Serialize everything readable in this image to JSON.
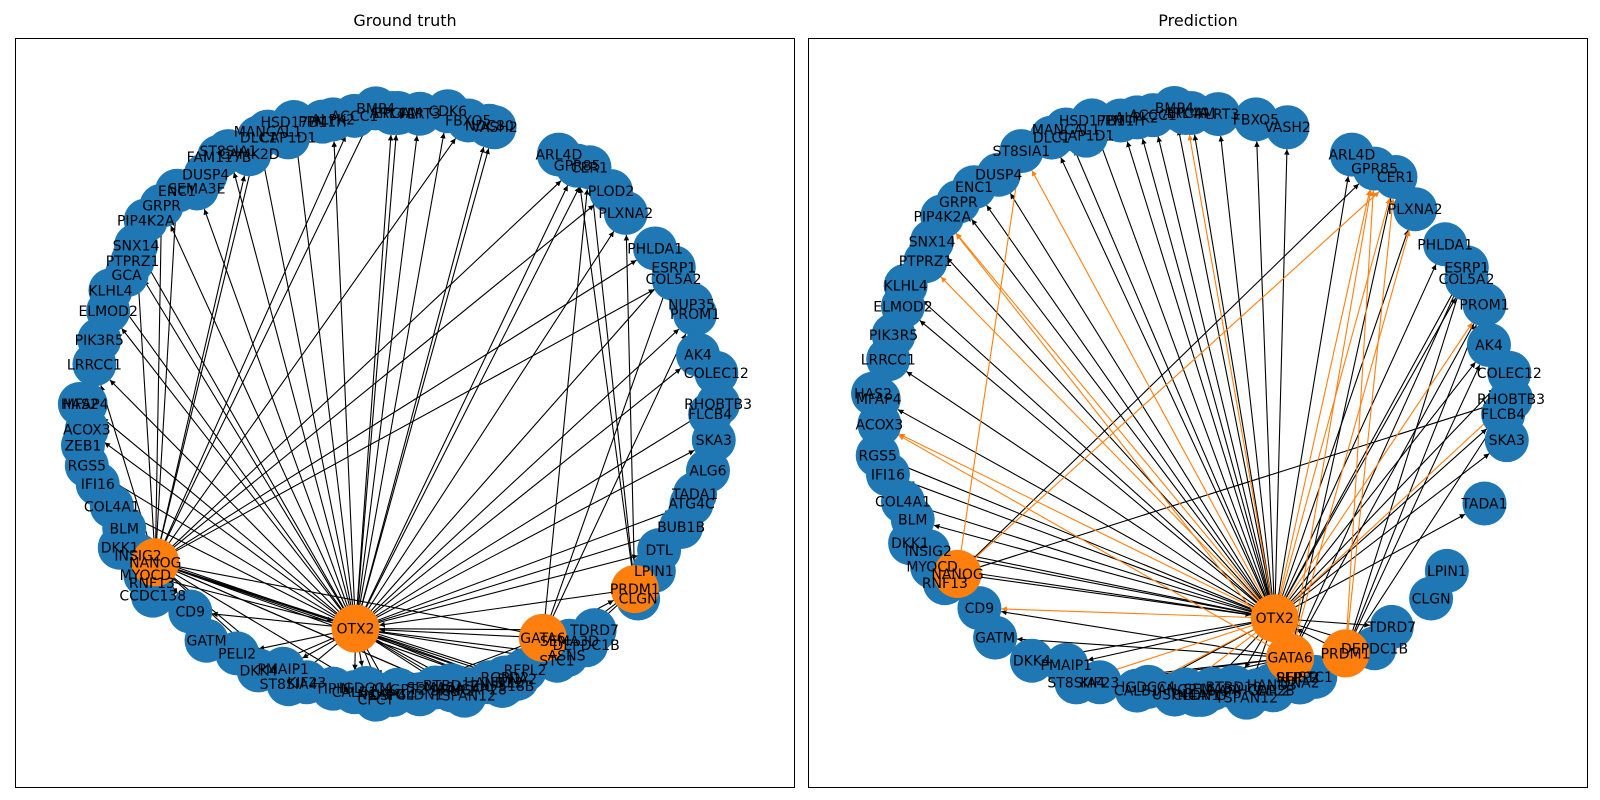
{
  "panels": [
    {
      "id": "ground-truth",
      "title": "Ground truth",
      "colors": {
        "node": "#1f77b4",
        "hub": "#ff7f0e",
        "edge": "#000000"
      },
      "hubs": [
        "OTX2",
        "NANOG",
        "GATA6",
        "PRDM1"
      ],
      "hub_positions": {
        "OTX2": 190,
        "NANOG": 235,
        "GATA6": 150,
        "PRDM1": 130
      },
      "genes": [
        "EPCAM",
        "VASH2",
        "ARL4D",
        "CER1",
        "PLOD2",
        "PLXNA2",
        "PHLDA1",
        "COL5A2",
        "NUP35",
        "ESRP1",
        "PROM1",
        "AK4",
        "COLEC12",
        "FLCB4",
        "RHOBTB3",
        "SKA3",
        "ALG6",
        "TADA1",
        "ATG4C",
        "BUB1B",
        "DTL",
        "LPIN1",
        "CLGN",
        "TDRD7",
        "DEPDC1B",
        "ASNS",
        "RGPD2",
        "ZNF518B",
        "SFRP2",
        "DNA2",
        "NCAPG",
        "TSPAN12",
        "SEMA3D",
        "STC1",
        "RFPL2",
        "HAND3",
        "ARHGAP28",
        "ELL2",
        "BTBD10",
        "SEMA3A",
        "CLDN1",
        "ANGPT2",
        "USP44",
        "CPCT",
        "CALB1",
        "TIPIN",
        "KIF23",
        "IGDCC4",
        "ST8SIA4",
        "PMAIP1",
        "DKK4",
        "PELI2",
        "GATM",
        "CD9",
        "RNF13",
        "CCDC138",
        "MYOCD",
        "INSIG2",
        "DKK1",
        "BLM",
        "COL4A1",
        "IFI16",
        "RGS5",
        "ZEB1",
        "ACOX3",
        "HAS2",
        "MFAP4",
        "LRRCC1",
        "PIK3R5",
        "ELMOD2",
        "KLHL4",
        "GCA",
        "PTPRZ1",
        "SNX14",
        "PIP4K2A",
        "GRPR",
        "ENC1",
        "SEMA3E",
        "DUSP4",
        "FAM117B",
        "ST8SIA1",
        "CAMK2D",
        "DLC1",
        "MANCAL1",
        "CAP1D1",
        "HSD17B1",
        "PPM1H",
        "ALPK2",
        "ACCC1",
        "BMP4",
        "ARL4A",
        "FLRT3",
        "CDK6",
        "FBXO5",
        "NDC80",
        "GPR85"
      ],
      "gene_positions": {
        "EPCAM": 0,
        "VASH2": 18,
        "ARL4D": 31,
        "CER1": 37,
        "PLOD2": 43,
        "PLXNA2": 48,
        "PHLDA1": 57,
        "COL5A2": 64,
        "NUP35": 70,
        "ESRP1": 62,
        "PROM1": 72,
        "AK4": 80,
        "COLEC12": 84,
        "FLCB4": 92,
        "RHOBTB3": 90,
        "SKA3": 97,
        "ALG6": 103,
        "TADA1": 108,
        "ATG4C": 110,
        "BUB1B": 115,
        "DTL": 121,
        "LPIN1": 125,
        "CLGN": 131,
        "TDRD7": 141,
        "DEPDC1B": 144,
        "ASNS": 148,
        "RGPD2": 160,
        "ZNF518B": 161,
        "SFRP2": 170,
        "DNA2": 158,
        "NCAPG": 183,
        "TSPAN12": 168,
        "SEMA3D": 146,
        "STC1": 150,
        "RFPL2": 156,
        "HAND3": 163,
        "ARHGAP28": 167,
        "ELL2": 160,
        "BTBD10": 170,
        "SEMA3A": 173,
        "CLDN1": 176,
        "ANGPT2": 180,
        "USP44": 181,
        "CPCT": 184,
        "CALB1": 188,
        "TIPIN": 192,
        "KIF23": 197,
        "IGDCC4": 186,
        "ST8SIA4": 200,
        "PMAIP1": 202,
        "DKK4": 206,
        "PELI2": 211,
        "GATM": 217,
        "CD9": 223,
        "RNF13": 232,
        "CCDC138": 230,
        "MYOCD": 234,
        "INSIG2": 238,
        "DKK1": 241,
        "BLM": 244,
        "COL4A1": 249,
        "IFI16": 254,
        "RGS5": 258,
        "ZEB1": 262,
        "ACOX3": 265,
        "HAS2": 270,
        "MFAP4": 270,
        "LRRCC1": 278,
        "PIK3R5": 283,
        "ELMOD2": 289,
        "KLHL4": 293,
        "GCA": 297,
        "PTPRZ1": 300,
        "SNX14": 303,
        "PIP4K2A": 308,
        "GRPR": 312,
        "ENC1": 316,
        "SEMA3E": 319,
        "DUSP4": 322,
        "FAM117B": 326,
        "ST8SIA1": 328,
        "CAMK2D": 331,
        "DLC1": 334,
        "MANCAL1": 336,
        "CAP1D1": 339,
        "HSD17B1": 341,
        "PPM1H": 346,
        "ALPK2": 348,
        "ACCC1": 352,
        "BMP4": 356,
        "ARL4A": 359,
        "FLRT3": 4,
        "CDK6": 9,
        "FBXO5": 13,
        "NDC80": 17,
        "GPR85": 35
      },
      "edges": [
        [
          "OTX2",
          "EPCAM"
        ],
        [
          "OTX2",
          "VASH2"
        ],
        [
          "OTX2",
          "CER1"
        ],
        [
          "OTX2",
          "PLXNA2"
        ],
        [
          "OTX2",
          "ESRP1"
        ],
        [
          "OTX2",
          "PROM1"
        ],
        [
          "OTX2",
          "AK4"
        ],
        [
          "OTX2",
          "RHOBTB3"
        ],
        [
          "OTX2",
          "SKA3"
        ],
        [
          "OTX2",
          "ATG4C"
        ],
        [
          "OTX2",
          "BUB1B"
        ],
        [
          "OTX2",
          "DTL"
        ],
        [
          "OTX2",
          "TDRD7"
        ],
        [
          "OTX2",
          "ASNS"
        ],
        [
          "OTX2",
          "RGPD2"
        ],
        [
          "OTX2",
          "SFRP2"
        ],
        [
          "OTX2",
          "NCAPG"
        ],
        [
          "OTX2",
          "STC1"
        ],
        [
          "OTX2",
          "ELL2"
        ],
        [
          "OTX2",
          "BTBD10"
        ],
        [
          "OTX2",
          "USP44"
        ],
        [
          "OTX2",
          "IGDCC4"
        ],
        [
          "OTX2",
          "ST8SIA4"
        ],
        [
          "OTX2",
          "PMAIP1"
        ],
        [
          "OTX2",
          "DKK4"
        ],
        [
          "OTX2",
          "PELI2"
        ],
        [
          "OTX2",
          "CD9"
        ],
        [
          "OTX2",
          "MYOCD"
        ],
        [
          "OTX2",
          "DKK1"
        ],
        [
          "OTX2",
          "COL4A1"
        ],
        [
          "OTX2",
          "RGS5"
        ],
        [
          "OTX2",
          "ACOX3"
        ],
        [
          "OTX2",
          "MFAP4"
        ],
        [
          "OTX2",
          "LRRCC1"
        ],
        [
          "OTX2",
          "ELMOD2"
        ],
        [
          "OTX2",
          "KLHL4"
        ],
        [
          "OTX2",
          "PTPRZ1"
        ],
        [
          "OTX2",
          "SNX14"
        ],
        [
          "OTX2",
          "GRPR"
        ],
        [
          "OTX2",
          "SEMA3E"
        ],
        [
          "OTX2",
          "ST8SIA1"
        ],
        [
          "OTX2",
          "DLC1"
        ],
        [
          "OTX2",
          "HSD17B1"
        ],
        [
          "OTX2",
          "ALPK2"
        ],
        [
          "OTX2",
          "ARL4A"
        ],
        [
          "OTX2",
          "FLRT3"
        ],
        [
          "OTX2",
          "CDK6"
        ],
        [
          "OTX2",
          "NDC80"
        ],
        [
          "OTX2",
          "GPR85"
        ],
        [
          "OTX2",
          "HAND3"
        ],
        [
          "OTX2",
          "ARHGAP28"
        ],
        [
          "OTX2",
          "CALB1"
        ],
        [
          "NANOG",
          "DLC1"
        ],
        [
          "NANOG",
          "FBXO5"
        ],
        [
          "NANOG",
          "CAMK2D"
        ],
        [
          "NANOG",
          "ACCC1"
        ],
        [
          "NANOG",
          "BMP4"
        ],
        [
          "NANOG",
          "GRPR"
        ],
        [
          "NANOG",
          "SNX14"
        ],
        [
          "NANOG",
          "ENC1"
        ],
        [
          "NANOG",
          "LRRCC1"
        ],
        [
          "NANOG",
          "RGS5"
        ],
        [
          "NANOG",
          "CD9"
        ],
        [
          "NANOG",
          "OTX2"
        ],
        [
          "NANOG",
          "PLOD2"
        ],
        [
          "NANOG",
          "GPR85"
        ],
        [
          "NANOG",
          "PHLDA1"
        ],
        [
          "NANOG",
          "COL5A2"
        ],
        [
          "NANOG",
          "ELL2"
        ],
        [
          "NANOG",
          "ST8SIA4"
        ],
        [
          "NANOG",
          "PMAIP1"
        ],
        [
          "NANOG",
          "SEMA3D"
        ],
        [
          "NANOG",
          "TSPAN12"
        ],
        [
          "NANOG",
          "DNA2"
        ],
        [
          "NANOG",
          "ZNF518B"
        ],
        [
          "NANOG",
          "SFRP2"
        ],
        [
          "NANOG",
          "IGDCC4"
        ],
        [
          "GATA6",
          "OTX2"
        ],
        [
          "GATA6",
          "ELL2"
        ],
        [
          "GATA6",
          "BTBD10"
        ],
        [
          "GATA6",
          "USP44"
        ],
        [
          "GATA6",
          "CER1"
        ],
        [
          "GATA6",
          "ESRP1"
        ],
        [
          "GATA6",
          "PROM1"
        ],
        [
          "GATA6",
          "STC1"
        ],
        [
          "GATA6",
          "SEMA3D"
        ],
        [
          "GATA6",
          "PRDM1"
        ],
        [
          "PRDM1",
          "OTX2"
        ],
        [
          "PRDM1",
          "CER1"
        ],
        [
          "PRDM1",
          "GPR85"
        ],
        [
          "PRDM1",
          "PLXNA2"
        ],
        [
          "PRDM1",
          "STC1"
        ],
        [
          "PRDM1",
          "DNA2"
        ]
      ],
      "highlight_edges": []
    },
    {
      "id": "prediction",
      "title": "Prediction",
      "colors": {
        "node": "#1f77b4",
        "hub": "#ff7f0e",
        "edge": "#000000"
      },
      "hubs": [
        "OTX2",
        "NANOG",
        "GATA6",
        "PRDM1"
      ],
      "hub_positions": {
        "OTX2": 160,
        "NANOG": 232,
        "GATA6": 160,
        "PRDM1": 150
      },
      "genes": [
        "EPCAM",
        "VASH2",
        "ARL4D",
        "CER1",
        "GPR85",
        "PLXNA2",
        "PHLDA1",
        "COL5A2",
        "ESRP1",
        "PROM1",
        "AK4",
        "COLEC12",
        "FLCB4",
        "RHOBTB3",
        "SKA3",
        "TADA1",
        "LPIN1",
        "CLGN",
        "TDRD7",
        "DEPDC1B",
        "SFRP2",
        "DNA2",
        "NCAPG",
        "TSPAN12",
        "STC1",
        "RFPL2",
        "HAND3",
        "ARHGAP28",
        "ELL2",
        "BTBD10",
        "SEMA3A",
        "CLDN1",
        "ANGPT2",
        "USP44",
        "CALB1",
        "KIF23",
        "IGDCC4",
        "ST8SIA4",
        "PMAIP1",
        "DKK4",
        "GATM",
        "CD9",
        "RNF13",
        "MYOCD",
        "INSIG2",
        "DKK1",
        "BLM",
        "COL4A1",
        "IFI16",
        "RGS5",
        "ACOX3",
        "MFAP4",
        "HAS2",
        "LRRCC1",
        "PIK3R5",
        "ELMOD2",
        "KLHL4",
        "PTPRZ1",
        "SNX14",
        "PIP4K2A",
        "GRPR",
        "ENC1",
        "DUSP4",
        "ST8SIA1",
        "DLC1",
        "MANCAL1",
        "CAP1D1",
        "HSD17B1",
        "PPM1H",
        "ALPK2",
        "ACCC1",
        "BMP4",
        "ARL4A",
        "FLRT3",
        "FBXO5"
      ],
      "gene_positions": {
        "EPCAM": 0,
        "VASH2": 18,
        "ARL4D": 31,
        "CER1": 40,
        "GPR85": 36,
        "PLXNA2": 47,
        "PHLDA1": 56,
        "COL5A2": 64,
        "ESRP1": 62,
        "PROM1": 70,
        "AK4": 78,
        "COLEC12": 84,
        "FLCB4": 92,
        "RHOBTB3": 89,
        "SKA3": 97,
        "TADA1": 110,
        "LPIN1": 125,
        "CLGN": 131,
        "TDRD7": 140,
        "DEPDC1B": 145,
        "SFRP2": 160,
        "DNA2": 160,
        "NCAPG": 178,
        "TSPAN12": 170,
        "STC1": 157,
        "RFPL2": 160,
        "HAND3": 165,
        "ARHGAP28": 168,
        "ELL2": 165,
        "BTBD10": 172,
        "SEMA3A": 176,
        "CLDN1": 179,
        "ANGPT2": 181,
        "USP44": 183,
        "CALB1": 190,
        "KIF23": 197,
        "IGDCC4": 188,
        "ST8SIA4": 201,
        "PMAIP1": 204,
        "DKK4": 210,
        "GATM": 218,
        "CD9": 224,
        "RNF13": 232,
        "MYOCD": 236,
        "INSIG2": 239,
        "DKK1": 242,
        "BLM": 246,
        "COL4A1": 250,
        "IFI16": 256,
        "RGS5": 260,
        "ACOX3": 266,
        "MFAP4": 271,
        "HAS2": 272,
        "LRRCC1": 279,
        "PIK3R5": 284,
        "ELMOD2": 290,
        "KLHL4": 294,
        "PTPRZ1": 300,
        "SNX14": 304,
        "PIP4K2A": 309,
        "GRPR": 313,
        "ENC1": 317,
        "DUSP4": 322,
        "ST8SIA1": 328,
        "DLC1": 334,
        "MANCAL1": 337,
        "CAP1D1": 340,
        "HSD17B1": 342,
        "PPM1H": 347,
        "ALPK2": 350,
        "ACCC1": 353,
        "BMP4": 357,
        "ARL4A": 359,
        "FLRT3": 5,
        "FBXO5": 12
      },
      "edges": [
        [
          "OTX2",
          "EPCAM"
        ],
        [
          "OTX2",
          "VASH2"
        ],
        [
          "OTX2",
          "ARL4D"
        ],
        [
          "OTX2",
          "PLXNA2"
        ],
        [
          "OTX2",
          "PHLDA1"
        ],
        [
          "OTX2",
          "COL5A2"
        ],
        [
          "OTX2",
          "ESRP1"
        ],
        [
          "OTX2",
          "AK4"
        ],
        [
          "OTX2",
          "COLEC12"
        ],
        [
          "OTX2",
          "FLCB4"
        ],
        [
          "OTX2",
          "SKA3"
        ],
        [
          "OTX2",
          "TADA1"
        ],
        [
          "OTX2",
          "TDRD7"
        ],
        [
          "OTX2",
          "DEPDC1B"
        ],
        [
          "OTX2",
          "SFRP2"
        ],
        [
          "OTX2",
          "DNA2"
        ],
        [
          "OTX2",
          "NCAPG"
        ],
        [
          "OTX2",
          "TSPAN12"
        ],
        [
          "OTX2",
          "STC1"
        ],
        [
          "OTX2",
          "RFPL2"
        ],
        [
          "OTX2",
          "ELL2"
        ],
        [
          "OTX2",
          "BTBD10"
        ],
        [
          "OTX2",
          "IGDCC4"
        ],
        [
          "OTX2",
          "PMAIP1"
        ],
        [
          "OTX2",
          "DKK4"
        ],
        [
          "OTX2",
          "MYOCD"
        ],
        [
          "OTX2",
          "INSIG2"
        ],
        [
          "OTX2",
          "DKK1"
        ],
        [
          "OTX2",
          "BLM"
        ],
        [
          "OTX2",
          "COL4A1"
        ],
        [
          "OTX2",
          "IFI16"
        ],
        [
          "OTX2",
          "RGS5"
        ],
        [
          "OTX2",
          "MFAP4"
        ],
        [
          "OTX2",
          "LRRCC1"
        ],
        [
          "OTX2",
          "ELMOD2"
        ],
        [
          "OTX2",
          "KLHL4"
        ],
        [
          "OTX2",
          "SNX14"
        ],
        [
          "OTX2",
          "GRPR"
        ],
        [
          "OTX2",
          "ENC1"
        ],
        [
          "OTX2",
          "DUSP4"
        ],
        [
          "OTX2",
          "DLC1"
        ],
        [
          "OTX2",
          "MANCAL1"
        ],
        [
          "OTX2",
          "HSD17B1"
        ],
        [
          "OTX2",
          "PPM1H"
        ],
        [
          "OTX2",
          "ALPK2"
        ],
        [
          "OTX2",
          "ACCC1"
        ],
        [
          "OTX2",
          "BMP4"
        ],
        [
          "OTX2",
          "FLRT3"
        ],
        [
          "OTX2",
          "FBXO5"
        ],
        [
          "GATA6",
          "ELL2"
        ],
        [
          "GATA6",
          "STC1"
        ],
        [
          "GATA6",
          "HAND3"
        ],
        [
          "GATA6",
          "USP44"
        ],
        [
          "GATA6",
          "CALB1"
        ],
        [
          "GATA6",
          "KIF23"
        ],
        [
          "GATA6",
          "ST8SIA4"
        ],
        [
          "GATA6",
          "GATM"
        ],
        [
          "GATA6",
          "CD9"
        ],
        [
          "GATA6",
          "ESRP1"
        ],
        [
          "GATA6",
          "PROM1"
        ],
        [
          "GATA6",
          "CER1"
        ],
        [
          "PRDM1",
          "RHOBTB3"
        ],
        [
          "PRDM1",
          "AK4"
        ],
        [
          "PRDM1",
          "PROM1"
        ],
        [
          "PRDM1",
          "ESRP1"
        ],
        [
          "PRDM1",
          "ELL2"
        ],
        [
          "PRDM1",
          "OTX2"
        ],
        [
          "NANOG",
          "GPR85"
        ],
        [
          "NANOG",
          "RHOBTB3"
        ],
        [
          "NANOG",
          "OTX2"
        ]
      ],
      "highlight_edges": [
        [
          "OTX2",
          "GPR85"
        ],
        [
          "OTX2",
          "CER1"
        ],
        [
          "OTX2",
          "ARL4A"
        ],
        [
          "OTX2",
          "ST8SIA1"
        ],
        [
          "OTX2",
          "PIP4K2A"
        ],
        [
          "OTX2",
          "PTPRZ1"
        ],
        [
          "OTX2",
          "ACOX3"
        ],
        [
          "OTX2",
          "CALB1"
        ],
        [
          "OTX2",
          "USP44"
        ],
        [
          "OTX2",
          "ST8SIA4"
        ],
        [
          "OTX2",
          "CD9"
        ],
        [
          "OTX2",
          "PROM1"
        ],
        [
          "OTX2",
          "RHOBTB3"
        ],
        [
          "GATA6",
          "GPR85"
        ],
        [
          "GATA6",
          "BTBD10"
        ],
        [
          "GATA6",
          "ARHGAP28"
        ],
        [
          "GATA6",
          "PLXNA2"
        ],
        [
          "GATA6",
          "ACOX3"
        ],
        [
          "GATA6",
          "PIP4K2A"
        ],
        [
          "NANOG",
          "ST8SIA1"
        ],
        [
          "NANOG",
          "CER1"
        ],
        [
          "PRDM1",
          "GPR85"
        ],
        [
          "PRDM1",
          "CER1"
        ]
      ]
    }
  ]
}
